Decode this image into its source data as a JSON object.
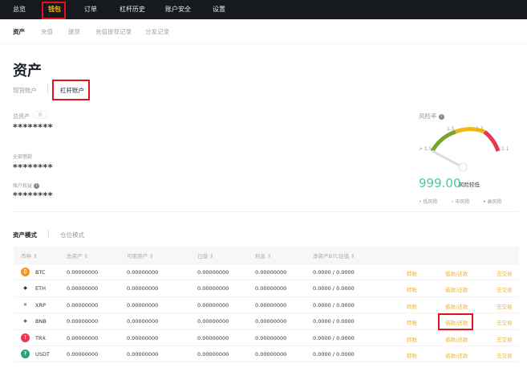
{
  "topnav": {
    "items": [
      "总览",
      "钱包",
      "订单",
      "杠杆历史",
      "账户安全",
      "设置"
    ],
    "active": "钱包"
  },
  "subnav": {
    "items": [
      "资产",
      "充值",
      "提现",
      "充值提现记录",
      "分发记录"
    ],
    "active": "资产"
  },
  "page_title": "资产",
  "account_tabs": {
    "spot": "现货账户",
    "margin": "杠杆账户"
  },
  "summary": {
    "total_label": "总资产",
    "total_value": "********",
    "borrowed_label": "全部借款",
    "borrowed_value": "********",
    "equity_label": "账户权益",
    "equity_value": "********"
  },
  "risk": {
    "label": "风险率",
    "value": "999.00",
    "status": "风险较低",
    "ticks": [
      "> 1.5",
      "1.5",
      "1.3",
      "1.1"
    ],
    "legend": [
      {
        "label": "低风险",
        "color": "#4fc6a0"
      },
      {
        "label": "中风险",
        "color": "#f0b90b"
      },
      {
        "label": "高风险",
        "color": "#e8384f"
      }
    ],
    "colors": {
      "low": "#7ba428",
      "mid": "#f0b90b",
      "high": "#e8384f"
    }
  },
  "modes": {
    "asset": "资产模式",
    "position": "仓位模式"
  },
  "table": {
    "headers": [
      "币种",
      "总资产",
      "可用资产",
      "已借",
      "利息",
      "净资产BTC估值"
    ],
    "actions": [
      "转账",
      "借款/还款",
      "去交易"
    ],
    "rows": [
      {
        "coin": "BTC",
        "total": "0.00000000",
        "available": "0.00000000",
        "borrowed": "0.00000000",
        "interest": "0.00000000",
        "net": "0.0000 / 0.0000"
      },
      {
        "coin": "ETH",
        "total": "0.00000000",
        "available": "0.00000000",
        "borrowed": "0.00000000",
        "interest": "0.00000000",
        "net": "0.0000 / 0.0000"
      },
      {
        "coin": "XRP",
        "total": "0.00000000",
        "available": "0.00000000",
        "borrowed": "0.00000000",
        "interest": "0.00000000",
        "net": "0.0000 / 0.0000"
      },
      {
        "coin": "BNB",
        "total": "0.00000000",
        "available": "0.00000000",
        "borrowed": "0.00000000",
        "interest": "0.00000000",
        "net": "0.0000 / 0.0000"
      },
      {
        "coin": "TRX",
        "total": "0.00000000",
        "available": "0.00000000",
        "borrowed": "0.00000000",
        "interest": "0.00000000",
        "net": "0.0000 / 0.0000"
      },
      {
        "coin": "USDT",
        "total": "0.00000000",
        "available": "0.00000000",
        "borrowed": "0.00000000",
        "interest": "0.00000000",
        "net": "0.0000 / 0.0000"
      }
    ]
  }
}
